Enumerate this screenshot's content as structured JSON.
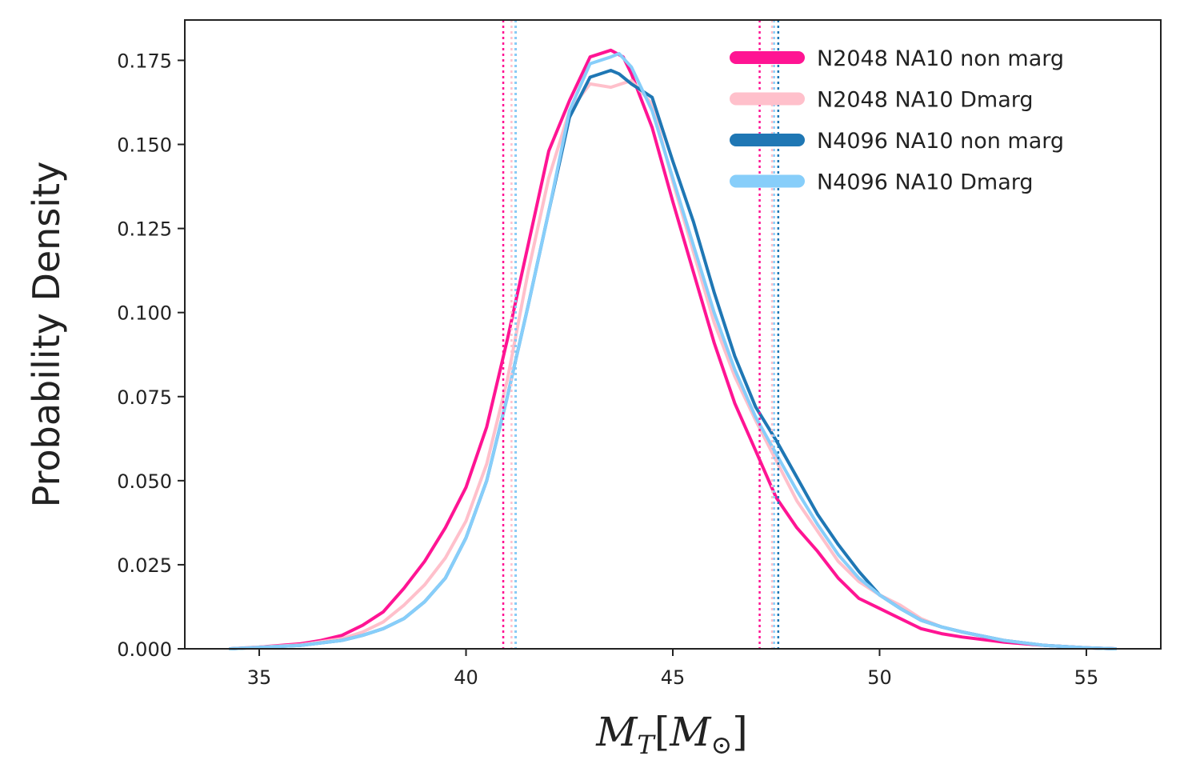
{
  "chart_data": {
    "type": "line",
    "title": "",
    "xlabel": "M_T[M_⊙]",
    "xlabel_parts": {
      "main": "M",
      "sub": "T",
      "open": "[",
      "main2": "M",
      "sub2": "⊙",
      "close": "]"
    },
    "ylabel": "Probability Density",
    "xlim": [
      33.2,
      56.8
    ],
    "ylim": [
      0,
      0.187
    ],
    "xticks": [
      35,
      40,
      45,
      50,
      55
    ],
    "xtick_labels": [
      "35",
      "40",
      "45",
      "50",
      "55"
    ],
    "yticks": [
      0,
      0.025,
      0.05,
      0.075,
      0.1,
      0.125,
      0.15,
      0.175
    ],
    "ytick_labels": [
      "0.000",
      "0.025",
      "0.050",
      "0.075",
      "0.100",
      "0.125",
      "0.150",
      "0.175"
    ],
    "legend_position": "top-right",
    "series": [
      {
        "name": "N2048 NA10 non marg",
        "color": "#ff1493",
        "x": [
          34.3,
          35,
          36,
          36.5,
          37,
          37.5,
          38,
          38.5,
          39,
          39.5,
          40,
          40.5,
          41,
          41.5,
          42,
          42.5,
          43,
          43.5,
          43.8,
          44,
          44.5,
          45,
          45.5,
          46,
          46.5,
          47,
          47.5,
          48,
          48.5,
          49,
          49.5,
          50,
          50.5,
          51,
          51.5,
          52,
          53,
          54,
          55,
          55.7
        ],
        "y": [
          0.0,
          0.0005,
          0.0015,
          0.0025,
          0.004,
          0.007,
          0.011,
          0.018,
          0.026,
          0.036,
          0.048,
          0.066,
          0.092,
          0.12,
          0.148,
          0.163,
          0.176,
          0.178,
          0.176,
          0.171,
          0.155,
          0.133,
          0.112,
          0.091,
          0.073,
          0.059,
          0.045,
          0.036,
          0.029,
          0.021,
          0.015,
          0.012,
          0.009,
          0.006,
          0.0045,
          0.0035,
          0.002,
          0.001,
          0.0003,
          0.0
        ]
      },
      {
        "name": "N2048 NA10 Dmarg",
        "color": "#ffc0cb",
        "x": [
          34.3,
          35,
          36,
          37,
          37.5,
          38,
          38.5,
          39,
          39.5,
          40,
          40.5,
          41,
          41.5,
          42,
          42.5,
          43,
          43.5,
          44,
          44.5,
          45,
          45.5,
          46,
          46.5,
          47,
          47.5,
          48,
          48.5,
          49,
          49.5,
          50,
          50.5,
          51,
          51.5,
          52,
          53,
          54,
          55,
          55.7
        ],
        "y": [
          0.0,
          0.0005,
          0.0012,
          0.003,
          0.005,
          0.008,
          0.013,
          0.019,
          0.027,
          0.038,
          0.055,
          0.08,
          0.112,
          0.14,
          0.16,
          0.168,
          0.167,
          0.169,
          0.162,
          0.139,
          0.118,
          0.097,
          0.081,
          0.068,
          0.056,
          0.044,
          0.035,
          0.026,
          0.02,
          0.016,
          0.013,
          0.009,
          0.0065,
          0.005,
          0.0025,
          0.001,
          0.0003,
          0.0
        ]
      },
      {
        "name": "N4096 NA10 non marg",
        "color": "#1f77b4",
        "x": [
          34.3,
          35,
          36,
          37,
          37.5,
          38,
          38.5,
          39,
          39.5,
          40,
          40.5,
          41,
          41.5,
          42,
          42.5,
          43,
          43.5,
          43.7,
          44,
          44.5,
          45,
          45.5,
          46,
          46.5,
          47,
          47.5,
          48,
          48.5,
          49,
          49.5,
          50,
          50.5,
          51,
          51.5,
          52,
          53,
          54,
          55,
          55.7
        ],
        "y": [
          0.0,
          0.0004,
          0.001,
          0.0025,
          0.004,
          0.006,
          0.009,
          0.014,
          0.021,
          0.033,
          0.05,
          0.075,
          0.102,
          0.13,
          0.158,
          0.17,
          0.172,
          0.171,
          0.168,
          0.164,
          0.145,
          0.127,
          0.106,
          0.087,
          0.072,
          0.062,
          0.051,
          0.04,
          0.031,
          0.023,
          0.016,
          0.012,
          0.0085,
          0.0065,
          0.005,
          0.0025,
          0.001,
          0.0003,
          0.0
        ]
      },
      {
        "name": "N4096 NA10 Dmarg",
        "color": "#87cefa",
        "x": [
          34.3,
          35,
          36,
          37,
          37.5,
          38,
          38.5,
          39,
          39.5,
          40,
          40.5,
          41,
          41.5,
          42,
          42.5,
          43,
          43.5,
          43.7,
          44,
          44.5,
          45,
          45.5,
          46,
          46.5,
          47,
          47.5,
          48,
          48.5,
          49,
          49.5,
          50,
          50.5,
          51,
          51.5,
          52,
          53,
          54,
          55,
          55.7
        ],
        "y": [
          0.0,
          0.0004,
          0.001,
          0.0025,
          0.004,
          0.006,
          0.009,
          0.014,
          0.021,
          0.033,
          0.05,
          0.075,
          0.102,
          0.13,
          0.16,
          0.174,
          0.176,
          0.177,
          0.173,
          0.16,
          0.14,
          0.12,
          0.1,
          0.083,
          0.069,
          0.058,
          0.047,
          0.037,
          0.028,
          0.021,
          0.016,
          0.012,
          0.0085,
          0.0065,
          0.005,
          0.0025,
          0.001,
          0.0003,
          0.0
        ]
      }
    ],
    "vlines": [
      {
        "series": "N2048 NA10 non marg",
        "color": "#ff1493",
        "x": [
          40.9,
          47.1
        ]
      },
      {
        "series": "N2048 NA10 Dmarg",
        "color": "#ffc0cb",
        "x": [
          41.1,
          47.4
        ]
      },
      {
        "series": "N4096 NA10 non marg",
        "color": "#1f77b4",
        "x": [
          41.2,
          47.55
        ]
      },
      {
        "series": "N4096 NA10 Dmarg",
        "color": "#87cefa",
        "x": [
          41.2,
          47.45
        ]
      }
    ]
  }
}
